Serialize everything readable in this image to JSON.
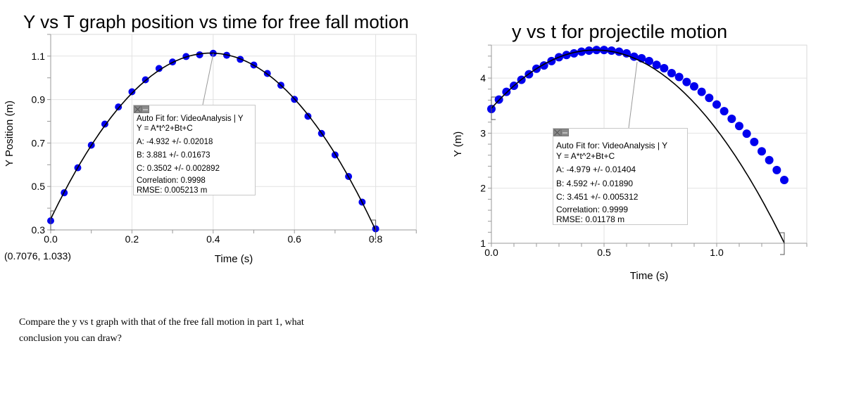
{
  "chart_data": [
    {
      "type": "scatter",
      "title": "Y vs T graph position vs time for free fall motion",
      "xlabel": "Time (s)",
      "ylabel": "Y Position (m)",
      "ylabel_color": "#000000",
      "xlim": [
        0.0,
        0.9
      ],
      "ylim": [
        0.3,
        1.2
      ],
      "x_ticks": [
        "0.0",
        "0.2",
        "0.4",
        "0.6",
        "0.8"
      ],
      "y_ticks": [
        "0.3",
        "0.5",
        "0.7",
        "0.9",
        "1.1"
      ],
      "grid": true,
      "marker_color": "#0000ee",
      "fit_line_color": "#000000",
      "series": [
        {
          "name": "VideoAnalysis | Y",
          "x": [
            0.0,
            0.0333,
            0.0667,
            0.1,
            0.1333,
            0.1667,
            0.2,
            0.2333,
            0.2667,
            0.3,
            0.3333,
            0.3667,
            0.4,
            0.4333,
            0.4667,
            0.5,
            0.5333,
            0.5667,
            0.6,
            0.6333,
            0.6667,
            0.7,
            0.7333,
            0.7667,
            0.8
          ],
          "y": [
            0.342,
            0.471,
            0.586,
            0.69,
            0.787,
            0.866,
            0.936,
            0.991,
            1.043,
            1.073,
            1.098,
            1.106,
            1.113,
            1.104,
            1.085,
            1.059,
            1.02,
            0.966,
            0.901,
            0.823,
            0.744,
            0.645,
            0.546,
            0.428,
            0.305
          ]
        }
      ],
      "fit": {
        "header": "Auto Fit for: VideoAnalysis | Y",
        "equation": "Y = A*t^2+Bt+C",
        "A": "A: -4.932 +/- 0.02018",
        "B": "B: 3.881 +/- 0.01673",
        "C": "C: 0.3502 +/- 0.002892",
        "correlation": "Correlation: 0.9998",
        "rmse": "RMSE: 0.005213 m",
        "coef": {
          "A": -4.932,
          "B": 3.881,
          "C": 0.3502
        },
        "range": [
          0.0,
          0.8
        ]
      },
      "annotation": "(0.7076, 1.033)"
    },
    {
      "type": "scatter",
      "title": "y vs t  for projectile motion",
      "xlabel": "Time (s)",
      "ylabel": "Y (m)",
      "ylabel_color": "#0000ee",
      "xlim": [
        0.0,
        1.4
      ],
      "ylim": [
        1.0,
        4.6
      ],
      "x_ticks": [
        "0.0",
        "0.5",
        "1.0"
      ],
      "y_ticks": [
        "1",
        "2",
        "3",
        "4"
      ],
      "grid": true,
      "marker_color": "#0000ee",
      "fit_line_color": "#000000",
      "series": [
        {
          "name": "VideoAnalysis | Y",
          "x": [
            0.0,
            0.0333,
            0.0667,
            0.1,
            0.1333,
            0.1667,
            0.2,
            0.2333,
            0.2667,
            0.3,
            0.3333,
            0.3667,
            0.4,
            0.4333,
            0.4667,
            0.5,
            0.5333,
            0.5667,
            0.6,
            0.6333,
            0.6667,
            0.7,
            0.7333,
            0.7667,
            0.8,
            0.8333,
            0.8667,
            0.9,
            0.9333,
            0.9667,
            1.0,
            1.0333,
            1.0667,
            1.1,
            1.1333,
            1.1667,
            1.2,
            1.2333,
            1.2667,
            1.3
          ],
          "y": [
            3.44,
            3.61,
            3.75,
            3.86,
            3.97,
            4.07,
            4.17,
            4.23,
            4.31,
            4.38,
            4.42,
            4.45,
            4.48,
            4.5,
            4.51,
            4.51,
            4.5,
            4.48,
            4.45,
            4.39,
            4.36,
            4.31,
            4.24,
            4.18,
            4.09,
            4.02,
            3.93,
            3.85,
            3.75,
            3.64,
            3.52,
            3.4,
            3.26,
            3.13,
            2.99,
            2.84,
            2.67,
            2.51,
            2.33,
            2.15
          ]
        }
      ],
      "fit": {
        "header": "Auto Fit for: VideoAnalysis | Y",
        "equation": "Y = A*t^2+Bt+C",
        "A": "A: -4.979 +/- 0.01404",
        "B": "B: 4.592 +/- 0.01890",
        "C": "C: 3.451 +/- 0.005312",
        "correlation": "Correlation: 0.9999",
        "rmse": "RMSE: 0.01178 m",
        "coef": {
          "A": -4.979,
          "B": 4.592,
          "C": 3.451
        },
        "range": [
          0.0,
          1.3
        ]
      }
    }
  ],
  "question": {
    "text": "Compare the y vs t graph with that of the free fall motion in part 1, what conclusion you can draw?"
  }
}
